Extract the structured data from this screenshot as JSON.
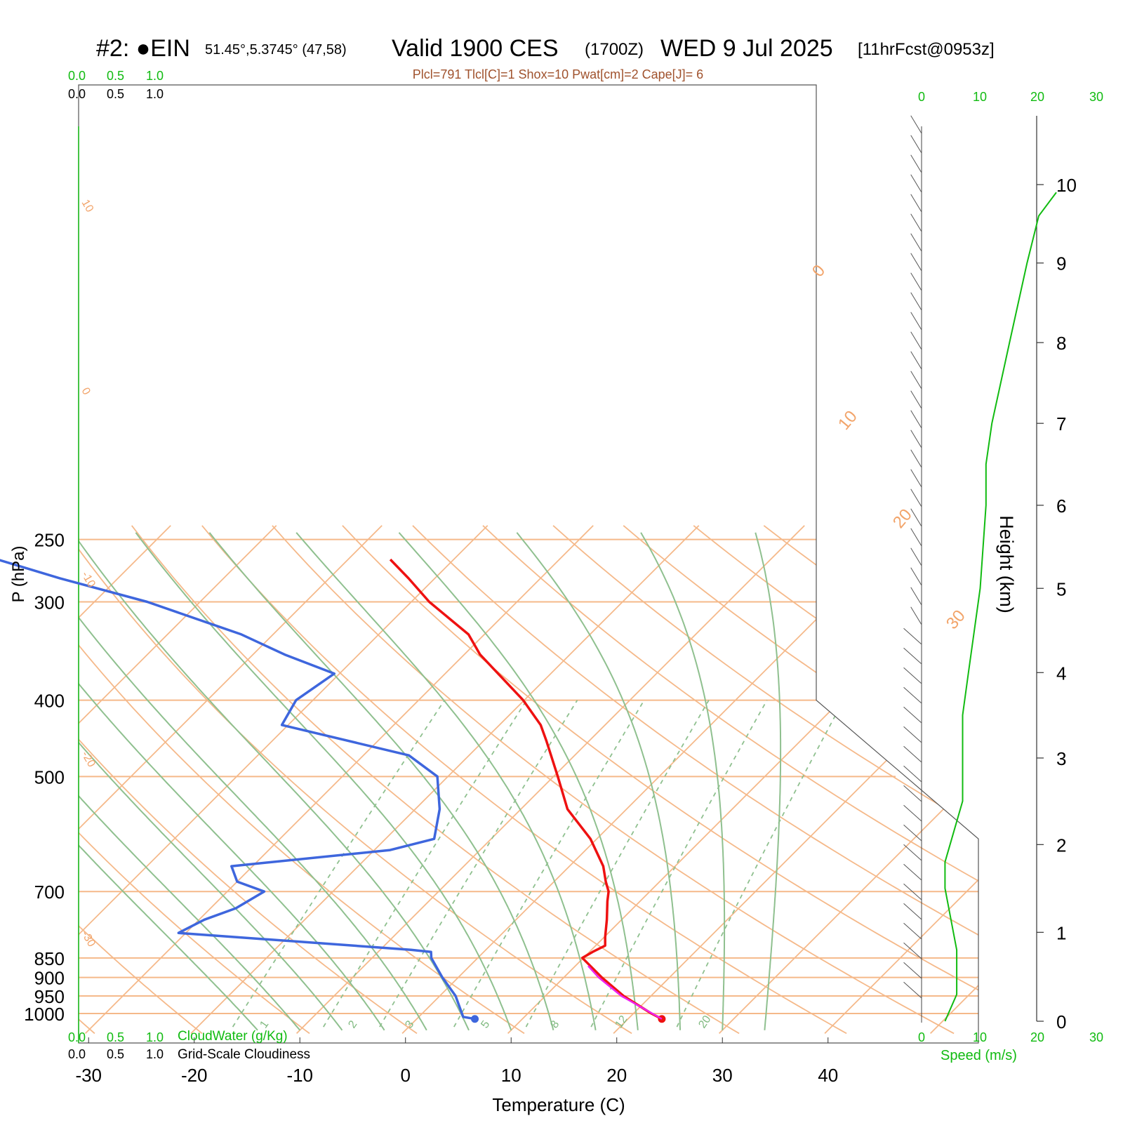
{
  "header": {
    "station": "#2: ●EIN",
    "coords": "51.45°,5.3745° (47,58)",
    "valid": "Valid 1900 CES",
    "zulu": "(1700Z)",
    "date": "WED 9 Jul 2025",
    "forecast": "[11hrFcst@0953z]",
    "indices": "Plcl=791 Tlcl[C]=1 Shox=10 Pwat[cm]=2 Cape[J]= 6"
  },
  "scales": {
    "top_green": [
      "0.0",
      "0.5",
      "1.0"
    ],
    "top_black": [
      "0.0",
      "0.5",
      "1.0"
    ],
    "bottom_green": [
      "0.0",
      "0.5",
      "1.0"
    ],
    "bottom_black": [
      "0.0",
      "0.5",
      "1.0"
    ],
    "cloudwater_label": "CloudWater (g/Kg)",
    "cloudiness_label": "Grid-Scale Cloudiness",
    "speed_ticks": [
      "0",
      "10",
      "20",
      "30"
    ],
    "speed_label": "Speed (m/s)"
  },
  "chart_data": {
    "type": "line",
    "subtype": "skew-T log-P",
    "xlabel": "Temperature (C)",
    "ylabel": "P (hPa)",
    "y2label": "Height (km)",
    "x_ticks": [
      -30,
      -20,
      -10,
      0,
      10,
      20,
      30,
      40
    ],
    "p_ticks": [
      1000,
      950,
      900,
      850,
      700,
      500,
      400,
      300,
      250
    ],
    "height_ticks_km": [
      0,
      1,
      2,
      3,
      4,
      5,
      6,
      7,
      8,
      9,
      10
    ],
    "isotherm_labels": [
      "10",
      "0",
      "-10",
      "-20",
      "-30",
      "0",
      "10",
      "20",
      "30"
    ],
    "mixing_ratio_labels": [
      "1",
      "2",
      "3",
      "5",
      "8",
      "12",
      "20"
    ],
    "series": [
      {
        "name": "Temperature",
        "color": "#ee1111",
        "p": [
          1016,
          1000,
          950,
          900,
          850,
          835,
          820,
          800,
          760,
          720,
          700,
          680,
          650,
          600,
          550,
          500,
          450,
          430,
          400,
          350,
          330,
          300,
          280,
          265
        ],
        "t": [
          23.2,
          21.7,
          17.4,
          13.6,
          9.9,
          10.3,
          10.9,
          10.1,
          8.6,
          6.9,
          6.1,
          4.9,
          3.2,
          -0.6,
          -5.6,
          -9.6,
          -14.1,
          -16.1,
          -20.1,
          -28.5,
          -31.5,
          -38.3,
          -42.5,
          -46.0
        ]
      },
      {
        "name": "Dewpoint",
        "color": "#3e66dd",
        "p": [
          1016,
          1010,
          950,
          900,
          850,
          835,
          830,
          790,
          760,
          735,
          700,
          680,
          650,
          620,
          600,
          550,
          500,
          470,
          430,
          400,
          370,
          350,
          330,
          300,
          280,
          265
        ],
        "t": [
          5.5,
          4.2,
          1.5,
          -1.5,
          -4.4,
          -5.0,
          -7.1,
          -30.7,
          -29.5,
          -27.6,
          -26.5,
          -30.0,
          -32.0,
          -18.5,
          -15.4,
          -17.7,
          -21.0,
          -25.7,
          -40.6,
          -41.6,
          -40.5,
          -47.0,
          -53.0,
          -65.0,
          -75.5,
          -83.2
        ]
      },
      {
        "name": "Parcel",
        "color": "#ee22ee",
        "p": [
          1016,
          950,
          900,
          870
        ],
        "t": [
          23.2,
          17.2,
          13.3,
          11.2
        ]
      }
    ],
    "wind_speed_profile": {
      "color": "#11bb11",
      "height_km": [
        0.0,
        0.3,
        0.8,
        1.5,
        1.8,
        2.5,
        3.0,
        3.5,
        4.0,
        5.0,
        6.0,
        6.5,
        7.0,
        8.0,
        9.0,
        9.6,
        9.9
      ],
      "speed_ms": [
        4,
        6,
        6,
        4,
        4,
        7,
        7,
        7,
        8,
        10,
        11,
        11,
        12,
        15,
        18,
        20,
        23
      ]
    }
  }
}
